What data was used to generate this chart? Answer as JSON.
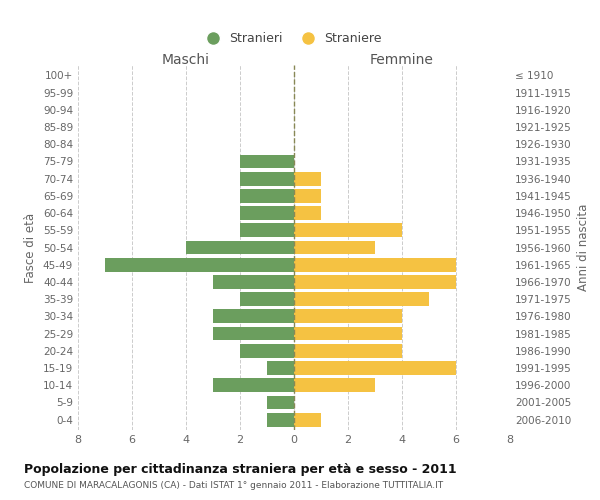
{
  "age_groups": [
    "0-4",
    "5-9",
    "10-14",
    "15-19",
    "20-24",
    "25-29",
    "30-34",
    "35-39",
    "40-44",
    "45-49",
    "50-54",
    "55-59",
    "60-64",
    "65-69",
    "70-74",
    "75-79",
    "80-84",
    "85-89",
    "90-94",
    "95-99",
    "100+"
  ],
  "birth_years": [
    "2006-2010",
    "2001-2005",
    "1996-2000",
    "1991-1995",
    "1986-1990",
    "1981-1985",
    "1976-1980",
    "1971-1975",
    "1966-1970",
    "1961-1965",
    "1956-1960",
    "1951-1955",
    "1946-1950",
    "1941-1945",
    "1936-1940",
    "1931-1935",
    "1926-1930",
    "1921-1925",
    "1916-1920",
    "1911-1915",
    "≤ 1910"
  ],
  "males": [
    1,
    1,
    3,
    1,
    2,
    3,
    3,
    2,
    3,
    7,
    4,
    2,
    2,
    2,
    2,
    2,
    0,
    0,
    0,
    0,
    0
  ],
  "females": [
    1,
    0,
    3,
    6,
    4,
    4,
    4,
    5,
    6,
    6,
    3,
    4,
    1,
    1,
    1,
    0,
    0,
    0,
    0,
    0,
    0
  ],
  "male_color": "#6b9e5e",
  "female_color": "#f5c242",
  "male_label": "Stranieri",
  "female_label": "Straniere",
  "maschi_label": "Maschi",
  "femmine_label": "Femmine",
  "fasce_label": "Fasce di età",
  "anni_label": "Anni di nascita",
  "title": "Popolazione per cittadinanza straniera per età e sesso - 2011",
  "subtitle": "COMUNE DI MARACALAGONIS (CA) - Dati ISTAT 1° gennaio 2011 - Elaborazione TUTTITALIA.IT",
  "xlim": 8,
  "background_color": "#ffffff",
  "grid_color": "#cccccc",
  "bar_height": 0.8
}
